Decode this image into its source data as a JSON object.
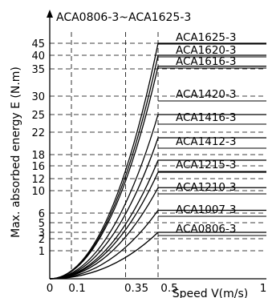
{
  "chart_data": {
    "type": "line",
    "title": "ACA0806-3~ACA1625-3",
    "xlabel": "Speed V(m/s)",
    "ylabel": "Max. absorbed energy E  (N.m)",
    "xlim": [
      0,
      1
    ],
    "x_ticks": [
      {
        "value": 0,
        "label": "0"
      },
      {
        "value": 0.1,
        "label": "0.1"
      },
      {
        "value": 0.35,
        "label": "0.35"
      },
      {
        "value": 0.5,
        "label": "0.5"
      },
      {
        "value": 1,
        "label": "1"
      }
    ],
    "y_ticks": [
      1,
      2,
      3,
      5,
      6,
      10,
      12,
      16,
      18,
      22,
      25,
      30,
      35,
      40,
      45
    ],
    "vertical_gridlines": [
      0.1,
      0.35,
      0.5
    ],
    "grid": true,
    "series": [
      {
        "name": "ACA0806-3",
        "x": [
          0,
          0.1,
          0.2,
          0.3,
          0.4,
          0.5,
          1
        ],
        "y": [
          0,
          0.12,
          0.5,
          1.1,
          2.0,
          3.0,
          3.0
        ]
      },
      {
        "name": "ACA1007-3",
        "x": [
          0,
          0.1,
          0.2,
          0.3,
          0.4,
          0.5,
          1
        ],
        "y": [
          0,
          0.25,
          1.0,
          2.3,
          4.2,
          6.5,
          6.5
        ]
      },
      {
        "name": "ACA1210-3",
        "x": [
          0,
          0.1,
          0.2,
          0.3,
          0.4,
          0.5,
          1
        ],
        "y": [
          0,
          0.45,
          1.8,
          4.0,
          7.0,
          10.5,
          10.5
        ]
      },
      {
        "name": "ACA1215-3",
        "x": [
          0,
          0.1,
          0.2,
          0.3,
          0.4,
          0.5,
          1
        ],
        "y": [
          0,
          0.6,
          2.4,
          5.5,
          9.5,
          14.0,
          14.0
        ]
      },
      {
        "name": "ACA1412-3",
        "x": [
          0,
          0.1,
          0.2,
          0.3,
          0.4,
          0.5,
          1
        ],
        "y": [
          0,
          0.7,
          2.8,
          6.5,
          11.5,
          17.0,
          17.0
        ]
      },
      {
        "name": "ACA1416-3",
        "x": [
          0,
          0.1,
          0.2,
          0.3,
          0.4,
          0.5,
          1
        ],
        "y": [
          0,
          0.9,
          3.5,
          7.8,
          14.0,
          21.0,
          21.0
        ]
      },
      {
        "name": "ACA1420-3",
        "x": [
          0,
          0.1,
          0.2,
          0.3,
          0.4,
          0.5,
          1
        ],
        "y": [
          0,
          1.1,
          4.3,
          9.5,
          17.0,
          25.0,
          25.0
        ]
      },
      {
        "name": "ACA1616-3",
        "x": [
          0,
          0.1,
          0.2,
          0.3,
          0.4,
          0.5,
          1
        ],
        "y": [
          0,
          1.5,
          6.0,
          13.0,
          24.0,
          36.0,
          36.0
        ]
      },
      {
        "name": "ACA1620-3",
        "x": [
          0,
          0.1,
          0.2,
          0.3,
          0.4,
          0.5,
          1
        ],
        "y": [
          0,
          1.7,
          6.5,
          14.5,
          26.0,
          40.0,
          40.0
        ]
      },
      {
        "name": "ACA1625-3",
        "x": [
          0,
          0.1,
          0.2,
          0.3,
          0.4,
          0.5,
          1
        ],
        "y": [
          0,
          1.8,
          7.2,
          16.0,
          29.0,
          45.0,
          45.0
        ]
      }
    ]
  }
}
